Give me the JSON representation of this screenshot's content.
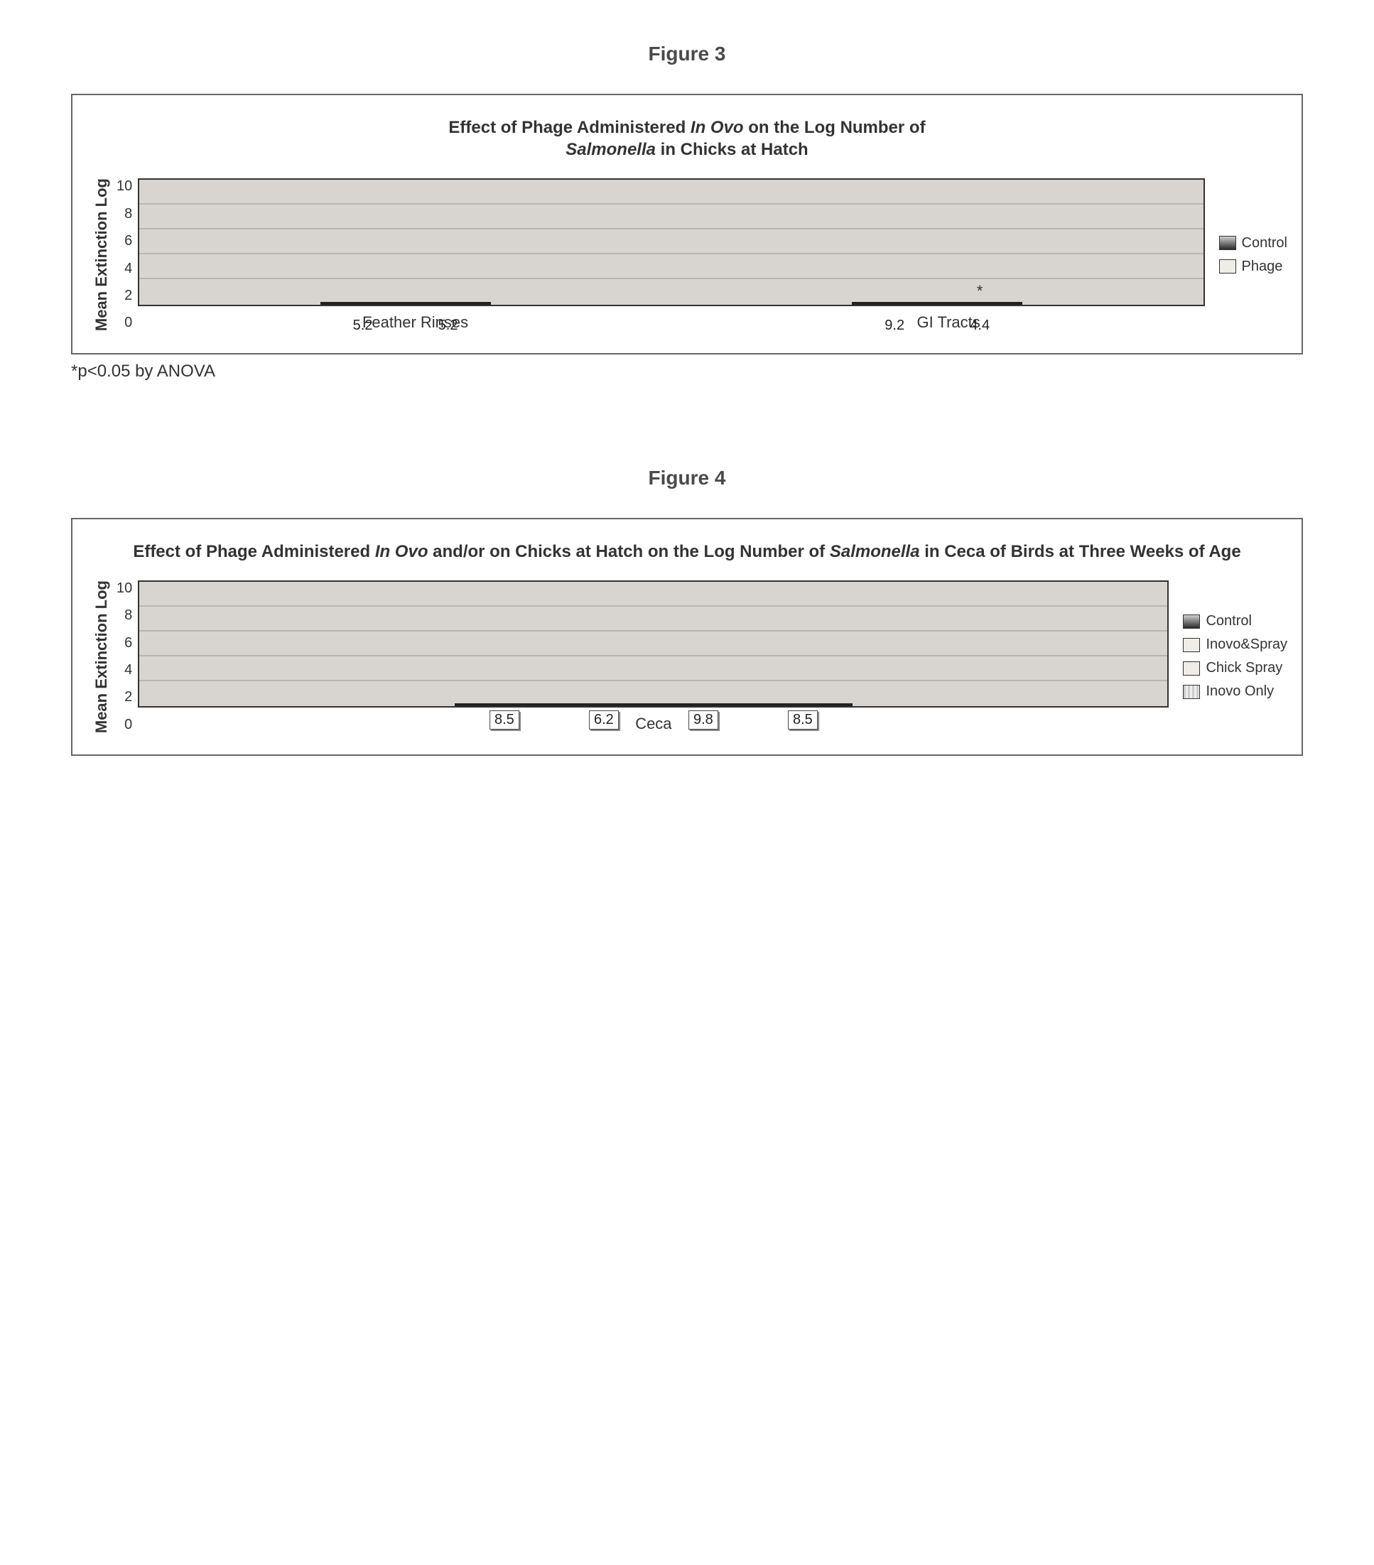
{
  "figure3": {
    "label": "Figure 3",
    "title_part1": "Effect of Phage Administered ",
    "title_italic1": "In Ovo",
    "title_part2": " on the Log Number of ",
    "title_italic2": "Salmonella",
    "title_part3": " in Chicks at Hatch",
    "ylabel": "Mean Extinction Log",
    "ylim": [
      0,
      10
    ],
    "ytick_step": 2,
    "yticks": [
      "0",
      "2",
      "4",
      "6",
      "8",
      "10"
    ],
    "categories": [
      "Feather Rinses",
      "GI Tracts"
    ],
    "series": [
      {
        "name": "Control",
        "swatch_class": "bar-gradient"
      },
      {
        "name": "Phage",
        "swatch_class": "bar-light"
      }
    ],
    "data": [
      {
        "cat": "Feather Rinses",
        "values": [
          5.2,
          5.2
        ],
        "marks": [
          "",
          ""
        ]
      },
      {
        "cat": "GI Tracts",
        "values": [
          9.2,
          4.4
        ],
        "marks": [
          "",
          "*"
        ]
      }
    ],
    "plot_bg": "#d8d4d0",
    "grid_color": "#b8b4b0",
    "bar_border": "#222222",
    "footnote": "*p<0.05 by ANOVA"
  },
  "figure4": {
    "label": "Figure 4",
    "title_part1": "Effect of Phage Administered ",
    "title_italic1": "In Ovo",
    "title_part2": " and/or on Chicks at Hatch on the Log Number of ",
    "title_italic2": "Salmonella",
    "title_part3": " in Ceca of Birds at Three Weeks of Age",
    "ylabel": "Mean Extinction Log",
    "ylim": [
      0,
      10
    ],
    "ytick_step": 2,
    "yticks": [
      "0",
      "2",
      "4",
      "6",
      "8",
      "10"
    ],
    "category": "Ceca",
    "series": [
      {
        "name": "Control",
        "swatch_class": "bar-gradient"
      },
      {
        "name": "Inovo&Spray",
        "swatch_class": "bar-light"
      },
      {
        "name": "Chick Spray",
        "swatch_class": "bar-light"
      },
      {
        "name": "Inovo Only",
        "swatch_class": "bar-pattern"
      }
    ],
    "values": [
      8.5,
      6.2,
      9.8,
      8.5
    ],
    "plot_bg": "#d8d4d0",
    "grid_color": "#b8b4b0",
    "bar_border": "#222222"
  }
}
